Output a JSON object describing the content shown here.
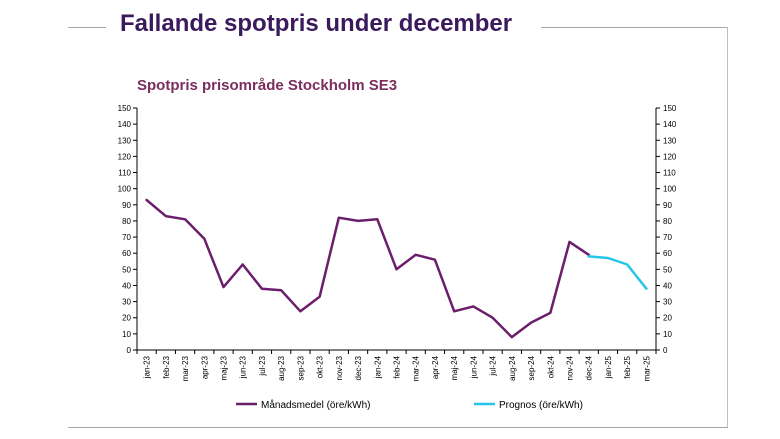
{
  "page": {
    "title": "Fallande spotpris under december"
  },
  "chart_data": {
    "type": "line",
    "title": "Spotpris prisområde Stockholm SE3",
    "xlabel": "",
    "ylabel": "",
    "ylim": [
      0,
      150
    ],
    "ytick_step": 10,
    "secondary_y_axis": true,
    "grid": false,
    "legend_position": "bottom",
    "categories": [
      "jan-23",
      "feb-23",
      "mar-23",
      "apr-23",
      "maj-23",
      "jun-23",
      "jul-23",
      "aug-23",
      "sep-23",
      "okt-23",
      "nov-23",
      "dec-23",
      "jan-24",
      "feb-24",
      "mar-24",
      "apr-24",
      "maj-24",
      "jun-24",
      "jul-24",
      "aug-24",
      "sep-24",
      "okt-24",
      "nov-24",
      "dec-24",
      "jan-25",
      "feb-25",
      "mar-25"
    ],
    "series": [
      {
        "name": "Månadsmedel (öre/kWh)",
        "color": "#6b1f6b",
        "values": [
          93,
          83,
          81,
          69,
          39,
          53,
          38,
          37,
          24,
          33,
          82,
          80,
          81,
          50,
          59,
          56,
          24,
          27,
          20,
          8,
          17,
          23,
          67,
          59,
          null,
          null,
          null
        ]
      },
      {
        "name": "Prognos (öre/kWh)",
        "color": "#27c5e8",
        "values": [
          null,
          null,
          null,
          null,
          null,
          null,
          null,
          null,
          null,
          null,
          null,
          null,
          null,
          null,
          null,
          null,
          null,
          null,
          null,
          null,
          null,
          null,
          null,
          58,
          57,
          53,
          38
        ]
      }
    ]
  }
}
